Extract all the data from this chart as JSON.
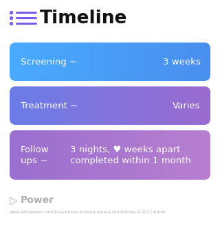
{
  "title": "Timeline",
  "background_color": "#ffffff",
  "title_color": "#111111",
  "title_fontsize": 19,
  "icon_color": "#7b5ce6",
  "boxes": [
    {
      "label_left": "Screening ~",
      "label_right": "3 weeks",
      "color_left": "#4aabff",
      "color_right": "#4a8fef",
      "text_color": "#ffffff",
      "multiline": false
    },
    {
      "label_left": "Treatment ~",
      "label_right": "Varies",
      "color_left": "#6b7de8",
      "color_right": "#9b6bcf",
      "text_color": "#ffffff",
      "multiline": false
    },
    {
      "label_left1": "Follow",
      "label_left2": "ups ~",
      "label_right1": "3 nights, ♥ weeks apart",
      "label_right2": "completed within 1 month",
      "color_left": "#9a6fd0",
      "color_right": "#b87fcf",
      "text_color": "#ffffff",
      "multiline": true
    }
  ],
  "footer_text": "Power",
  "footer_url": "www.withpower.com/trial/phase-3-sleep-apnea-syndromes-1-2017-6alde",
  "footer_color": "#b0b0b0"
}
